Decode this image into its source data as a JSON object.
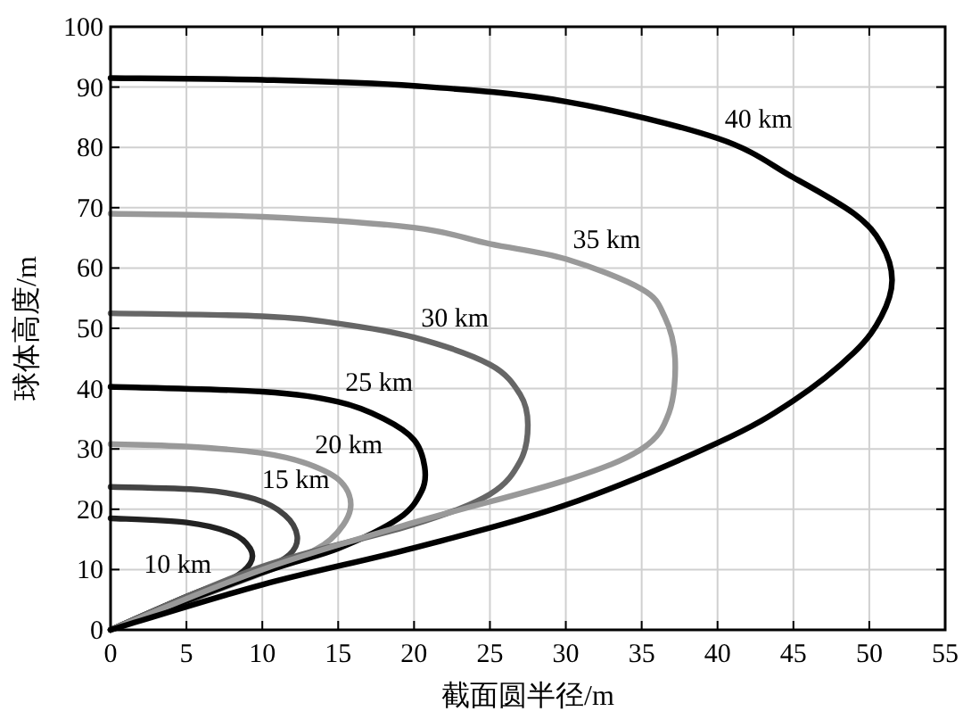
{
  "chart_data": {
    "type": "line",
    "xlabel": "截面圆半径/m",
    "ylabel": "球体高度/m",
    "xlim": [
      0,
      55
    ],
    "ylim": [
      0,
      100
    ],
    "xticks": [
      0,
      5,
      10,
      15,
      20,
      25,
      30,
      35,
      40,
      45,
      50,
      55
    ],
    "yticks": [
      0,
      10,
      20,
      30,
      40,
      50,
      60,
      70,
      80,
      90,
      100
    ],
    "grid": true,
    "series": [
      {
        "name": "10 km",
        "color": "#222222",
        "x": [
          0,
          5,
          8,
          9.2,
          9.2,
          8,
          5,
          0
        ],
        "values": [
          0,
          5.5,
          8.5,
          11,
          13.5,
          16,
          17.8,
          18.5
        ]
      },
      {
        "name": "15 km",
        "color": "#444444",
        "x": [
          0,
          6,
          10,
          11.8,
          12.3,
          11.5,
          9.5,
          6,
          0
        ],
        "values": [
          0,
          6.5,
          10,
          12.5,
          15.5,
          19,
          21.7,
          23.2,
          23.7
        ]
      },
      {
        "name": "20 km",
        "color": "#999999",
        "x": [
          0,
          8,
          12,
          14.5,
          15.8,
          15.2,
          13,
          10,
          5,
          0
        ],
        "values": [
          0,
          7.5,
          11.5,
          15,
          20,
          24.5,
          27.5,
          29.3,
          30.4,
          30.8
        ]
      },
      {
        "name": "25 km",
        "color": "#000000",
        "x": [
          0,
          10,
          15,
          19,
          20.5,
          20.7,
          20,
          18,
          15,
          10,
          0
        ],
        "values": [
          0,
          9.5,
          13.5,
          18.5,
          23,
          27,
          31.5,
          35,
          37.8,
          39.5,
          40.3
        ]
      },
      {
        "name": "30 km",
        "color": "#666666",
        "x": [
          0,
          10,
          20,
          25,
          27,
          27.5,
          27,
          25,
          20,
          15,
          10,
          0
        ],
        "values": [
          0,
          10.5,
          17.5,
          22.5,
          28,
          34,
          39,
          44,
          48.5,
          50.8,
          52,
          52.5
        ]
      },
      {
        "name": "35 km",
        "color": "#999999",
        "x": [
          0,
          10,
          20,
          30,
          35,
          36.8,
          37.2,
          36.5,
          35,
          30,
          25,
          20,
          10,
          0
        ],
        "values": [
          0,
          10,
          17.8,
          24.8,
          30,
          36,
          45,
          52,
          56.5,
          61.5,
          64,
          66.7,
          68.5,
          69
        ]
      },
      {
        "name": "40 km",
        "color": "#000000",
        "x": [
          0,
          10,
          20,
          30,
          40,
          45,
          49,
          50.8,
          51.5,
          50.8,
          49,
          45,
          40,
          30,
          20,
          10,
          0
        ],
        "values": [
          0,
          7.5,
          13.6,
          20.7,
          31,
          38,
          46,
          52,
          58,
          64,
          69,
          75,
          81.5,
          87.6,
          90.2,
          91.2,
          91.5
        ]
      }
    ]
  }
}
